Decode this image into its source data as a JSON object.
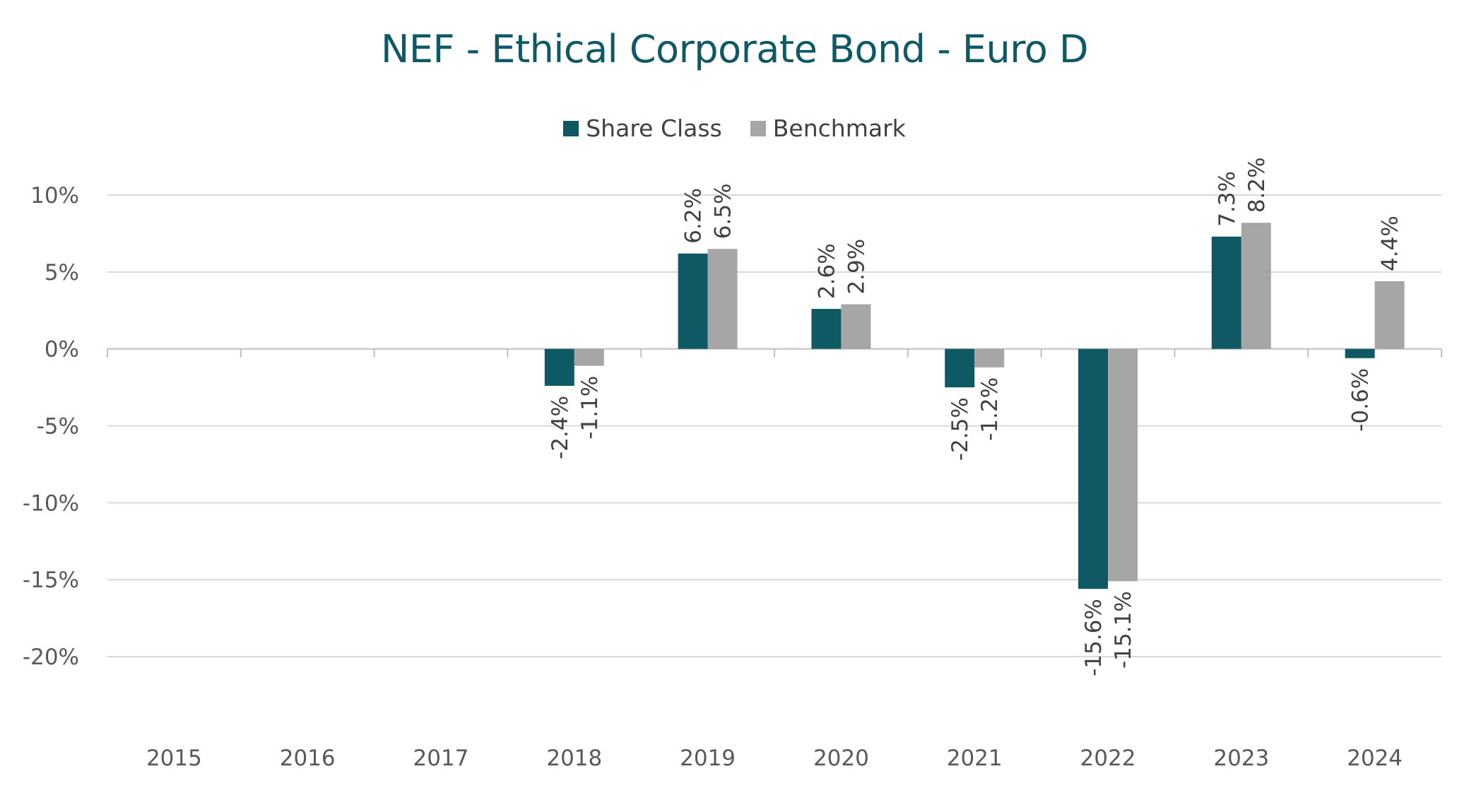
{
  "chart_data": {
    "type": "bar",
    "title": "NEF - Ethical Corporate Bond - Euro D",
    "categories": [
      "2015",
      "2016",
      "2017",
      "2018",
      "2019",
      "2020",
      "2021",
      "2022",
      "2023",
      "2024"
    ],
    "series": [
      {
        "name": "Share Class",
        "color": "#0f5965",
        "values": [
          null,
          null,
          null,
          -2.4,
          6.2,
          2.6,
          -2.5,
          -15.6,
          7.3,
          -0.6
        ],
        "labels": [
          "",
          "",
          "",
          "-2.4%",
          "6.2%",
          "2.6%",
          "-2.5%",
          "-15.6%",
          "7.3%",
          "-0.6%"
        ]
      },
      {
        "name": "Benchmark",
        "color": "#a6a6a6",
        "values": [
          null,
          null,
          null,
          -1.1,
          6.5,
          2.9,
          -1.2,
          -15.1,
          8.2,
          4.4
        ],
        "labels": [
          "",
          "",
          "",
          "-1.1%",
          "6.5%",
          "2.9%",
          "-1.2%",
          "-15.1%",
          "8.2%",
          "4.4%"
        ]
      }
    ],
    "yticks": [
      10,
      5,
      0,
      -5,
      -10,
      -15,
      -20
    ],
    "ytick_labels": [
      "10%",
      "5%",
      "0%",
      "-5%",
      "-10%",
      "-15%",
      "-20%"
    ],
    "ylim": [
      -20,
      10
    ],
    "grid": true,
    "legend_position": "top-center",
    "xlabel": "",
    "ylabel": ""
  }
}
